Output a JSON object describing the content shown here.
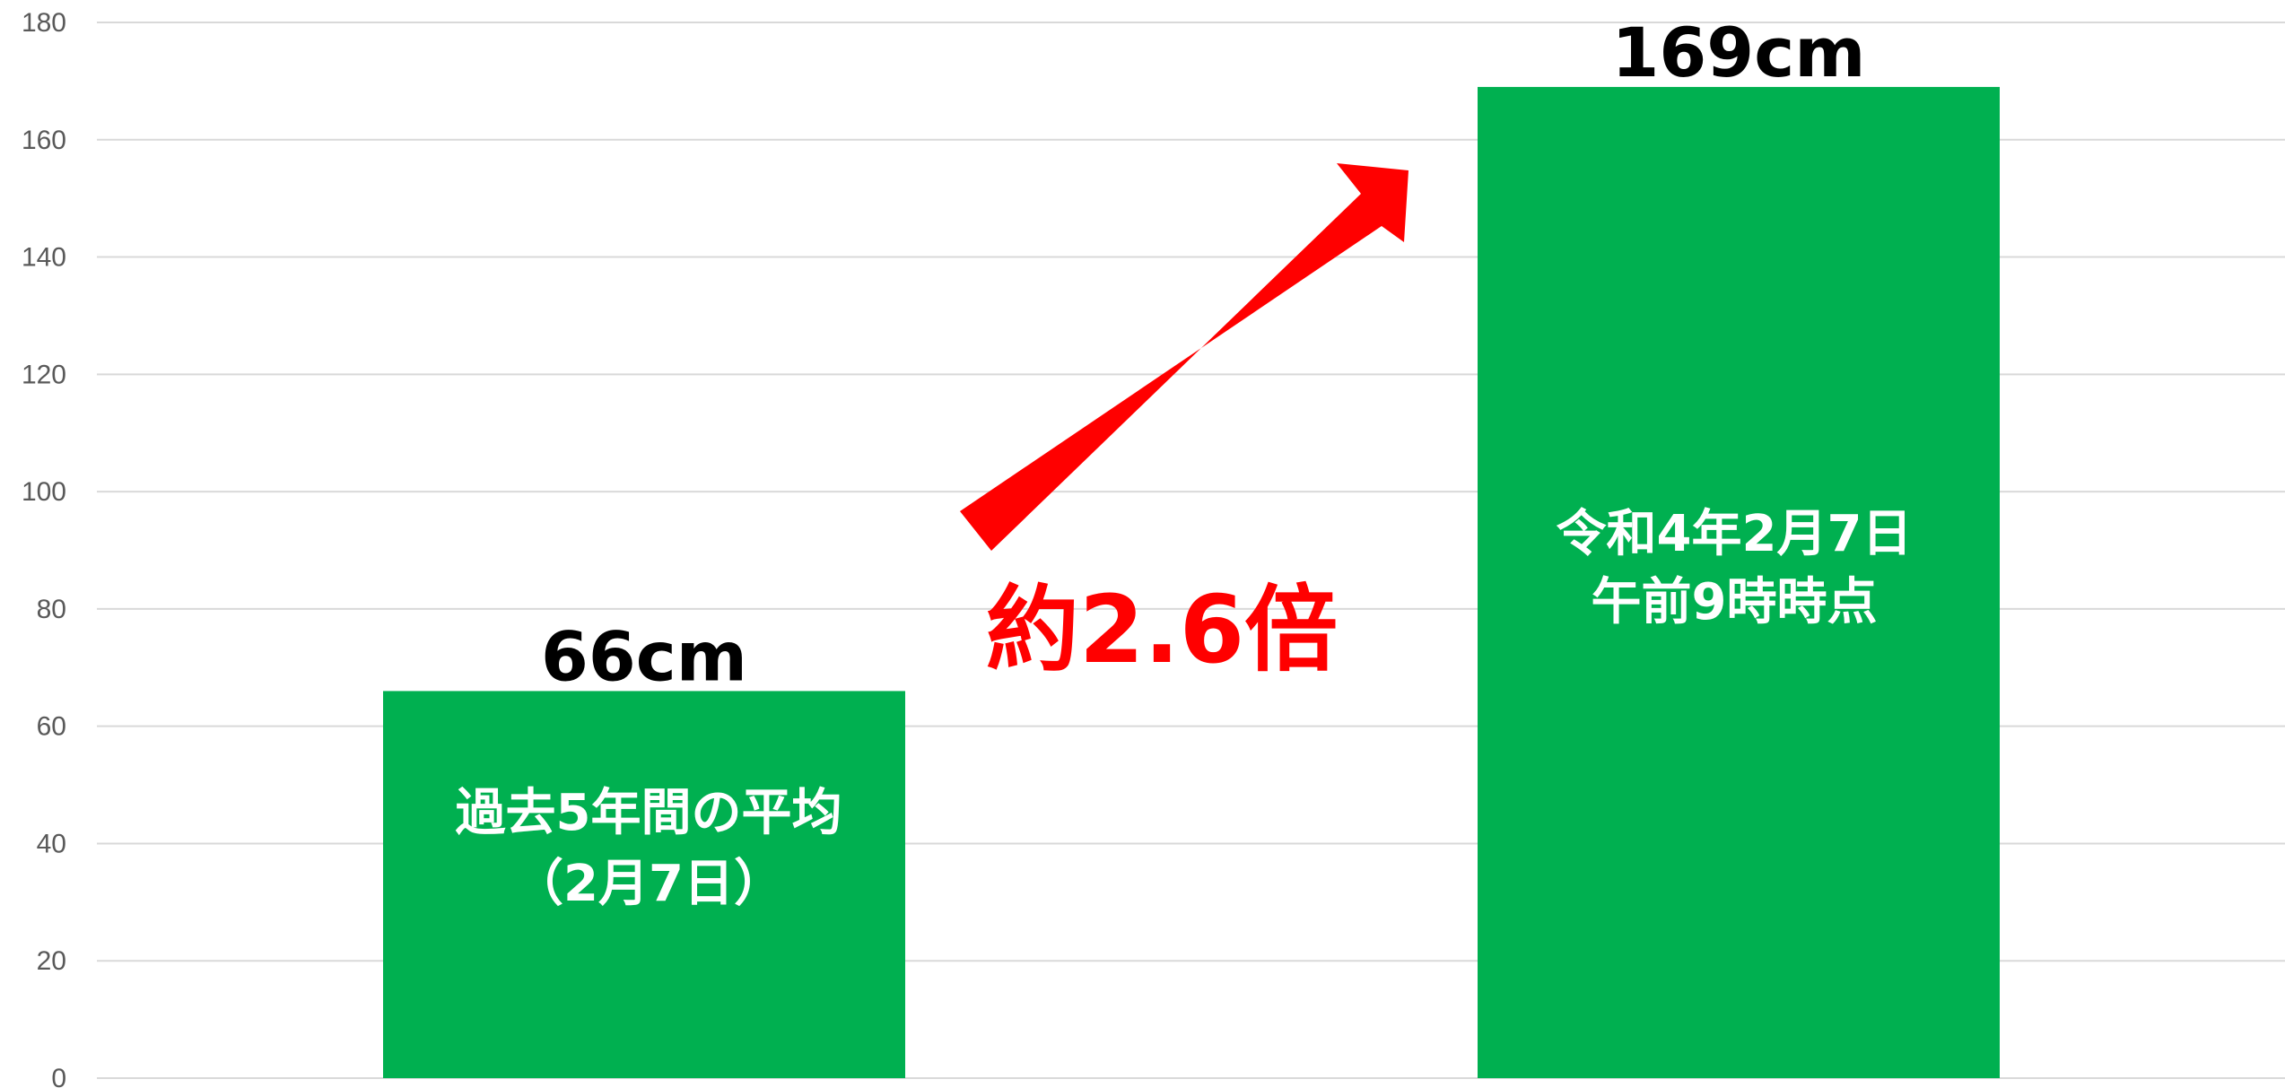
{
  "chart_data": {
    "type": "bar",
    "ylim": [
      0,
      180
    ],
    "yticks": [
      0,
      20,
      40,
      60,
      80,
      100,
      120,
      140,
      160,
      180
    ],
    "grid": true,
    "bars": [
      {
        "value": 66,
        "data_label": "66cm",
        "inner_label": [
          "過去5年間の平均",
          "（2月7日）"
        ]
      },
      {
        "value": 169,
        "data_label": "169cm",
        "inner_label": [
          "令和4年2月7日",
          "午前9時時点"
        ]
      }
    ],
    "annotation": {
      "text": "約2.6倍"
    }
  },
  "colors": {
    "bar": "#00b050",
    "annotation": "#ff0000",
    "grid": "#d9d9d9",
    "tick": "#595959"
  }
}
